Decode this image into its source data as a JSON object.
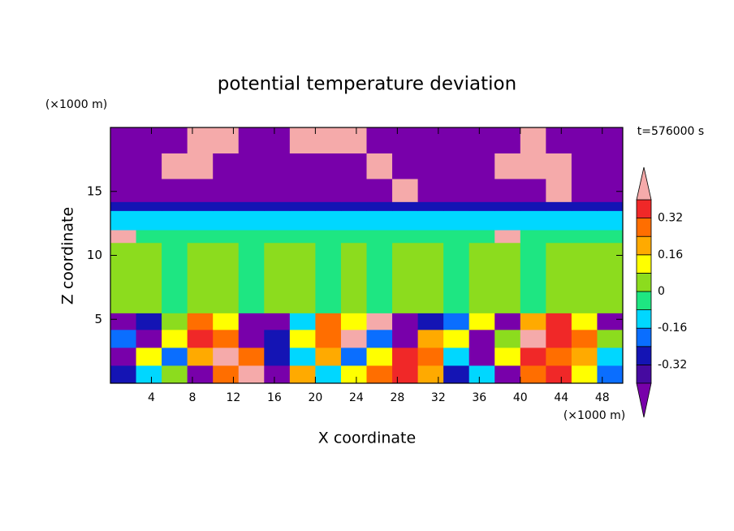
{
  "chart_data": {
    "type": "contour",
    "title": "potential temperature deviation",
    "x_label": "X coordinate",
    "y_label": "Z coordinate",
    "x_unit": "(×1000 m)",
    "y_unit": "(×1000 m)",
    "annotation": "t=576000 s",
    "xlim": [
      0,
      50
    ],
    "ylim": [
      0,
      20
    ],
    "xticks": [
      4,
      8,
      12,
      16,
      20,
      24,
      28,
      32,
      36,
      40,
      44,
      48
    ],
    "yticks": [
      5,
      10,
      15
    ],
    "x_edges": [
      0,
      2.5,
      5,
      7.5,
      10,
      12.5,
      15,
      17.5,
      20,
      22.5,
      25,
      27.5,
      30,
      32.5,
      35,
      37.5,
      40,
      42.5,
      45,
      47.5,
      50
    ],
    "y_edges": [
      0,
      1.4,
      2.8,
      4.2,
      5.5,
      11,
      12,
      13.5,
      14.2,
      16,
      18,
      20
    ],
    "z": [
      [
        -0.3,
        -0.1,
        0.05,
        -0.45,
        0.3,
        0.45,
        -0.45,
        0.2,
        -0.1,
        0.1,
        0.3,
        0.35,
        0.2,
        -0.3,
        -0.1,
        -0.45,
        0.3,
        0.35,
        0.1,
        -0.2
      ],
      [
        -0.45,
        0.1,
        -0.2,
        0.2,
        0.45,
        0.3,
        -0.3,
        -0.1,
        0.2,
        -0.2,
        0.1,
        0.35,
        0.3,
        -0.1,
        -0.45,
        0.1,
        0.35,
        0.3,
        0.2,
        -0.1
      ],
      [
        -0.2,
        -0.45,
        0.1,
        0.35,
        0.3,
        -0.45,
        -0.3,
        0.1,
        0.3,
        0.4,
        -0.2,
        -0.45,
        0.2,
        0.1,
        -0.45,
        0.05,
        0.4,
        0.35,
        0.3,
        0.05
      ],
      [
        -0.45,
        -0.3,
        0.05,
        0.3,
        0.1,
        -0.45,
        -0.45,
        -0.1,
        0.3,
        0.1,
        0.45,
        -0.45,
        -0.3,
        -0.2,
        0.1,
        -0.45,
        0.2,
        0.35,
        0.1,
        -0.45
      ],
      [
        0.03,
        0.04,
        -0.02,
        0.03,
        0.04,
        -0.03,
        0.03,
        0.04,
        -0.03,
        0.04,
        -0.02,
        0.03,
        0.04,
        -0.02,
        0.03,
        0.04,
        -0.03,
        0.04,
        0.03,
        0.02
      ],
      [
        0.45,
        -0.05,
        -0.03,
        -0.04,
        -0.05,
        -0.04,
        -0.05,
        -0.04,
        -0.03,
        -0.05,
        -0.04,
        -0.05,
        -0.04,
        -0.03,
        -0.05,
        0.45,
        -0.04,
        -0.05,
        -0.04,
        -0.05
      ],
      [
        -0.12,
        -0.11,
        -0.13,
        -0.12,
        -0.11,
        -0.12,
        -0.13,
        -0.12,
        -0.11,
        -0.12,
        -0.13,
        -0.12,
        -0.11,
        -0.12,
        -0.13,
        -0.12,
        -0.11,
        -0.12,
        -0.13,
        -0.12
      ],
      [
        -0.3,
        -0.28,
        -0.3,
        -0.29,
        -0.3,
        -0.28,
        -0.3,
        -0.29,
        -0.3,
        -0.28,
        -0.3,
        -0.29,
        -0.3,
        -0.28,
        -0.3,
        -0.29,
        -0.3,
        -0.28,
        -0.3,
        -0.29
      ],
      [
        -0.45,
        -0.45,
        -0.45,
        -0.45,
        -0.45,
        -0.45,
        -0.45,
        -0.45,
        -0.45,
        -0.45,
        -0.45,
        0.45,
        -0.45,
        -0.45,
        -0.45,
        -0.45,
        -0.45,
        0.45,
        -0.45,
        -0.45
      ],
      [
        -0.45,
        -0.45,
        0.45,
        0.45,
        -0.45,
        -0.45,
        -0.45,
        -0.45,
        -0.45,
        -0.45,
        0.45,
        -0.45,
        -0.45,
        -0.45,
        -0.45,
        0.45,
        0.45,
        0.45,
        -0.45,
        -0.45
      ],
      [
        -0.45,
        -0.45,
        -0.45,
        0.45,
        0.45,
        -0.45,
        -0.45,
        0.45,
        0.45,
        0.45,
        -0.45,
        -0.45,
        -0.45,
        -0.45,
        -0.45,
        -0.45,
        0.45,
        -0.45,
        -0.45,
        -0.45
      ]
    ],
    "levels": [
      -0.4,
      -0.32,
      -0.24,
      -0.16,
      -0.08,
      0,
      0.08,
      0.16,
      0.24,
      0.32,
      0.4
    ],
    "colors": [
      "#7800aa",
      "#460aa0",
      "#1414b4",
      "#0a6eff",
      "#00d7ff",
      "#1ee682",
      "#8cdc1e",
      "#ffff00",
      "#ffaa00",
      "#ff6e00",
      "#f02828",
      "#f5aaaa"
    ],
    "colorbar_ticks": [
      -0.32,
      -0.16,
      0,
      0.16,
      0.32
    ]
  }
}
